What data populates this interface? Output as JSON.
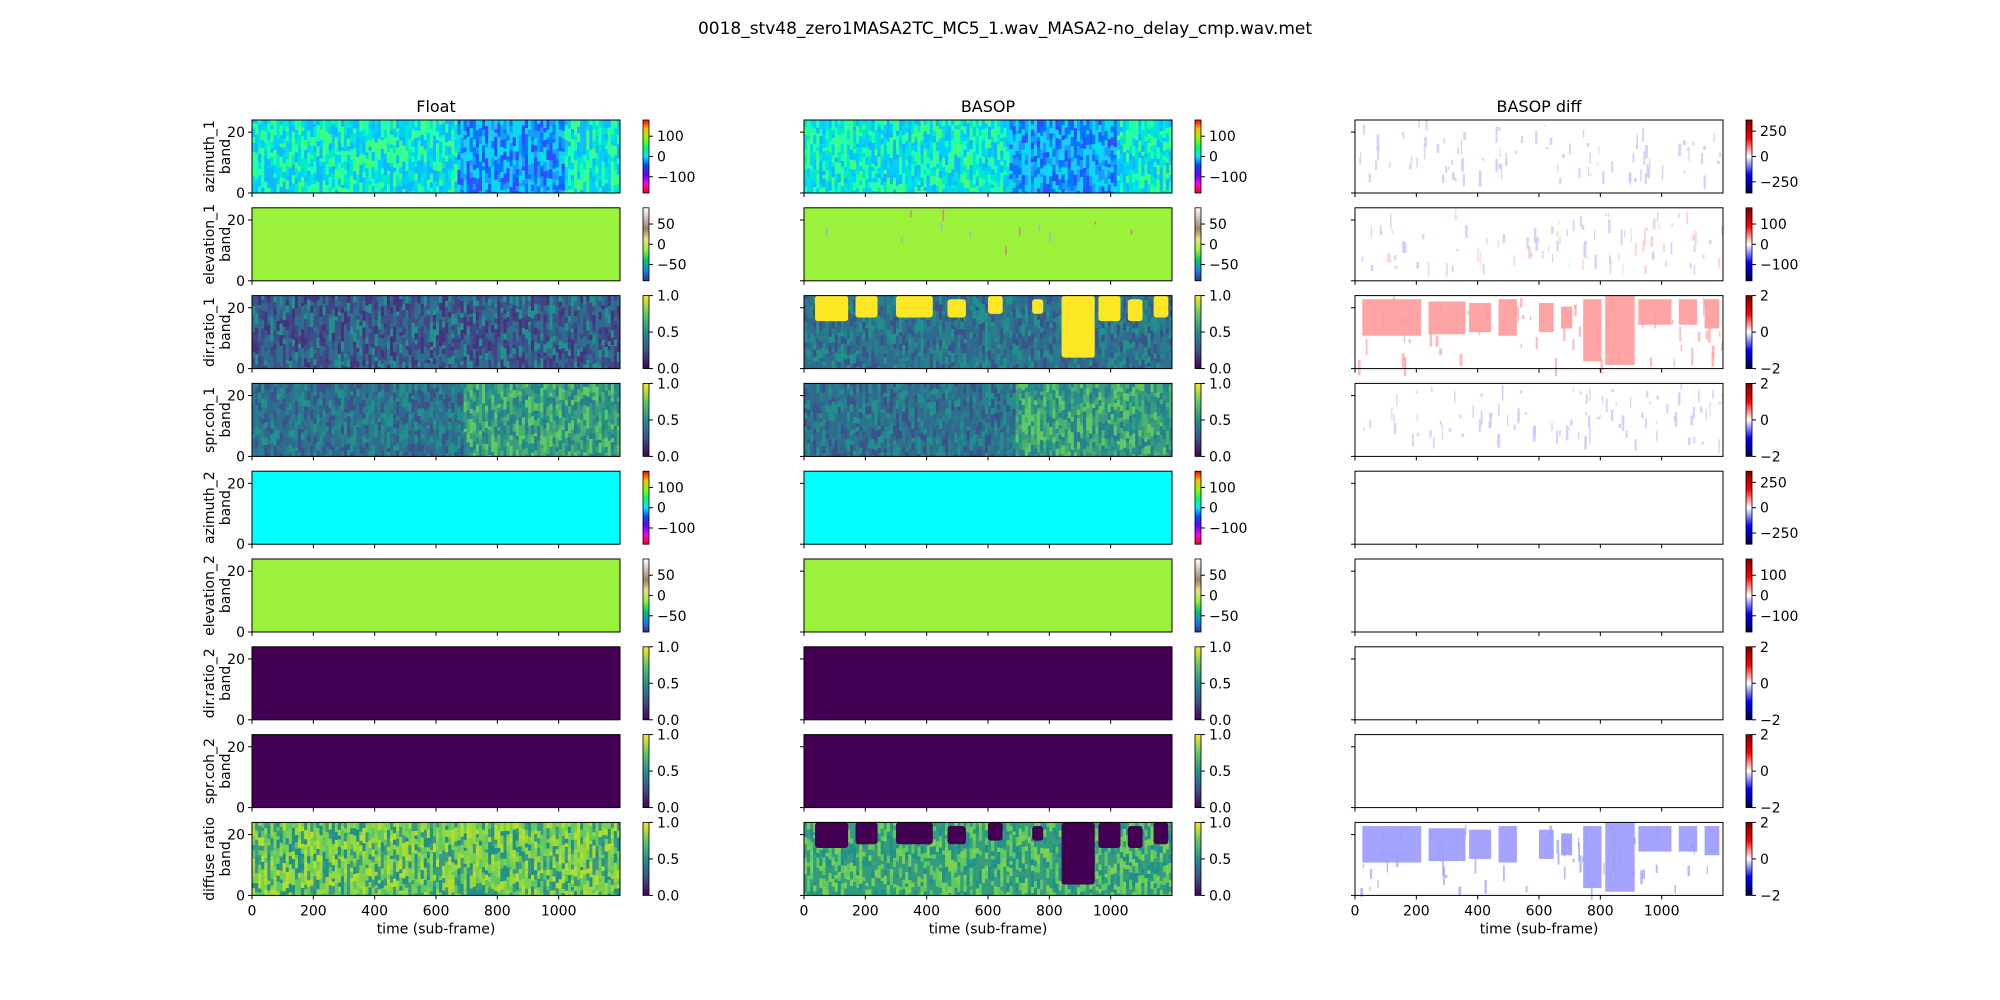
{
  "figure": {
    "title": "0018_stv48_zero1MASA2TC_MC5_1.wav_MASA2-no_delay_cmp.wav.met"
  },
  "chart_data": {
    "type": "heatmap",
    "layout": {
      "rows": 9,
      "columns": 3
    },
    "columns": [
      "Float",
      "BASOP",
      "BASOP diff"
    ],
    "rows": [
      {
        "ylabel": "azimuth_1\nband"
      },
      {
        "ylabel": "elevation_1\nband"
      },
      {
        "ylabel": "dir.ratio_1\nband"
      },
      {
        "ylabel": "spr.coh_1\nband"
      },
      {
        "ylabel": "azimuth_2\nband"
      },
      {
        "ylabel": "elevation_2\nband"
      },
      {
        "ylabel": "dir.ratio_2\nband"
      },
      {
        "ylabel": "spr.coh_2\nband"
      },
      {
        "ylabel": "diffuse ratio\nband"
      }
    ],
    "xlabel": "time (sub-frame)",
    "xlim": [
      0,
      1200
    ],
    "xticks": [
      0,
      200,
      400,
      600,
      800,
      1000
    ],
    "ylim": [
      0,
      24
    ],
    "yticks": [
      0,
      20
    ],
    "panels": [
      [
        {
          "pattern": "azimuth",
          "colormap": "hsv",
          "clim": [
            -180,
            180
          ],
          "cticks": [
            100,
            0,
            -100
          ]
        },
        {
          "pattern": "uniform",
          "fill": "#9bf23a",
          "colormap": "terrain",
          "clim": [
            -90,
            90
          ],
          "cticks": [
            50,
            0,
            -50
          ]
        },
        {
          "pattern": "dirratio_float",
          "colormap": "viridis",
          "clim": [
            0,
            1
          ],
          "cticks": [
            1.0,
            0.5,
            0.0
          ]
        },
        {
          "pattern": "sprcoh",
          "colormap": "viridis",
          "clim": [
            0,
            1
          ],
          "cticks": [
            1.0,
            0.5,
            0.0
          ]
        },
        {
          "pattern": "uniform",
          "fill": "#00ffff",
          "colormap": "hsv",
          "clim": [
            -180,
            180
          ],
          "cticks": [
            100,
            0,
            -100
          ]
        },
        {
          "pattern": "uniform",
          "fill": "#9bf23a",
          "colormap": "terrain",
          "clim": [
            -90,
            90
          ],
          "cticks": [
            50,
            0,
            -50
          ]
        },
        {
          "pattern": "uniform",
          "fill": "#440154",
          "colormap": "viridis",
          "clim": [
            0,
            1
          ],
          "cticks": [
            1.0,
            0.5,
            0.0
          ]
        },
        {
          "pattern": "uniform",
          "fill": "#440154",
          "colormap": "viridis",
          "clim": [
            0,
            1
          ],
          "cticks": [
            1.0,
            0.5,
            0.0
          ]
        },
        {
          "pattern": "diffuse_float",
          "colormap": "viridis",
          "clim": [
            0,
            1
          ],
          "cticks": [
            1.0,
            0.5,
            0.0
          ]
        }
      ],
      [
        {
          "pattern": "azimuth",
          "colormap": "hsv",
          "clim": [
            -180,
            180
          ],
          "cticks": [
            100,
            0,
            -100
          ]
        },
        {
          "pattern": "uniform_specks",
          "fill": "#9bf23a",
          "colormap": "terrain",
          "clim": [
            -90,
            90
          ],
          "cticks": [
            50,
            0,
            -50
          ]
        },
        {
          "pattern": "dirratio_basop",
          "colormap": "viridis",
          "clim": [
            0,
            1
          ],
          "cticks": [
            1.0,
            0.5,
            0.0
          ]
        },
        {
          "pattern": "sprcoh",
          "colormap": "viridis",
          "clim": [
            0,
            1
          ],
          "cticks": [
            1.0,
            0.5,
            0.0
          ]
        },
        {
          "pattern": "uniform",
          "fill": "#00ffff",
          "colormap": "hsv",
          "clim": [
            -180,
            180
          ],
          "cticks": [
            100,
            0,
            -100
          ]
        },
        {
          "pattern": "uniform",
          "fill": "#9bf23a",
          "colormap": "terrain",
          "clim": [
            -90,
            90
          ],
          "cticks": [
            50,
            0,
            -50
          ]
        },
        {
          "pattern": "uniform",
          "fill": "#440154",
          "colormap": "viridis",
          "clim": [
            0,
            1
          ],
          "cticks": [
            1.0,
            0.5,
            0.0
          ]
        },
        {
          "pattern": "uniform",
          "fill": "#440154",
          "colormap": "viridis",
          "clim": [
            0,
            1
          ],
          "cticks": [
            1.0,
            0.5,
            0.0
          ]
        },
        {
          "pattern": "diffuse_basop",
          "colormap": "viridis",
          "clim": [
            0,
            1
          ],
          "cticks": [
            1.0,
            0.5,
            0.0
          ]
        }
      ],
      [
        {
          "pattern": "diff_faint_blue",
          "colormap": "seismic",
          "clim": [
            -360,
            360
          ],
          "cticks": [
            250,
            0,
            -250
          ]
        },
        {
          "pattern": "diff_faint_mixed",
          "colormap": "seismic",
          "clim": [
            -180,
            180
          ],
          "cticks": [
            100,
            0,
            -100
          ]
        },
        {
          "pattern": "diff_red_blocks",
          "colormap": "seismic",
          "clim": [
            -2,
            2
          ],
          "cticks": [
            2,
            0,
            -2
          ]
        },
        {
          "pattern": "diff_faint_blue",
          "colormap": "seismic",
          "clim": [
            -2,
            2
          ],
          "cticks": [
            2,
            0,
            -2
          ]
        },
        {
          "pattern": "empty",
          "colormap": "seismic",
          "clim": [
            -360,
            360
          ],
          "cticks": [
            250,
            0,
            -250
          ]
        },
        {
          "pattern": "empty",
          "colormap": "seismic",
          "clim": [
            -180,
            180
          ],
          "cticks": [
            100,
            0,
            -100
          ]
        },
        {
          "pattern": "empty",
          "colormap": "seismic",
          "clim": [
            -2,
            2
          ],
          "cticks": [
            2,
            0,
            -2
          ]
        },
        {
          "pattern": "empty",
          "colormap": "seismic",
          "clim": [
            -2,
            2
          ],
          "cticks": [
            2,
            0,
            -2
          ]
        },
        {
          "pattern": "diff_blue_blocks",
          "colormap": "seismic",
          "clim": [
            -2,
            2
          ],
          "cticks": [
            2,
            0,
            -2
          ]
        }
      ]
    ]
  }
}
